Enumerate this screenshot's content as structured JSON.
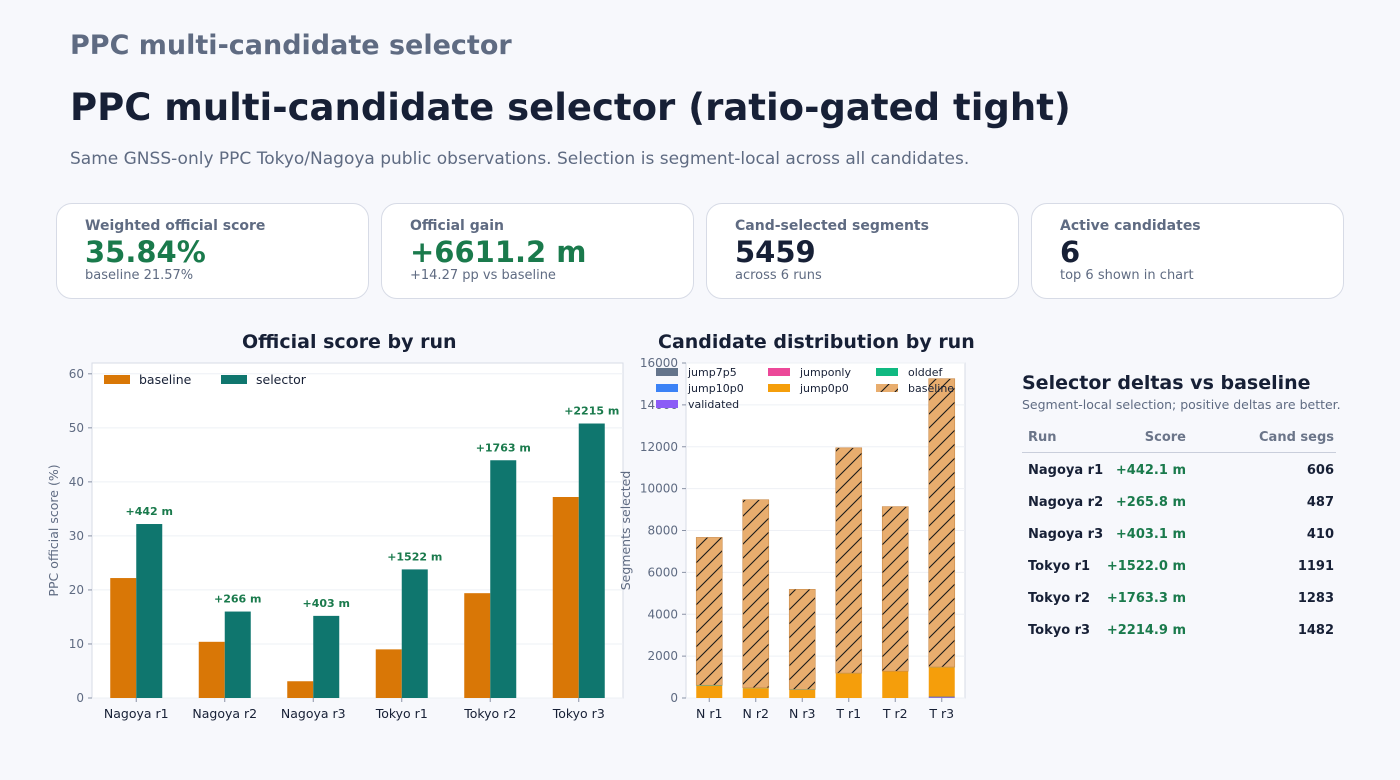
{
  "header": {
    "kicker": "PPC multi-candidate selector",
    "title": "PPC multi-candidate selector (ratio-gated tight)",
    "subtitle": "Same GNSS-only PPC Tokyo/Nagoya public observations. Selection is segment-local across all candidates."
  },
  "cards": [
    {
      "label": "Weighted official score",
      "value": "35.84%",
      "sub": "baseline 21.57%"
    },
    {
      "label": "Official gain",
      "value": "+6611.2 m",
      "sub": "+14.27 pp vs baseline"
    },
    {
      "label": "Cand-selected segments",
      "value": "5459",
      "sub": "across 6 runs"
    },
    {
      "label": "Active candidates",
      "value": "6",
      "sub": "top 6 shown in chart"
    }
  ],
  "colors": {
    "baseline_bar": "#d97706",
    "selector_bar": "#0f766e",
    "gain_text": "#1a7a4c",
    "jump7p5": "#64748b",
    "jumponly": "#ec4899",
    "olddef": "#10b981",
    "jump10p0": "#3b82f6",
    "jump0p0": "#f59e0b",
    "baseline_stack": "#e8ad6e",
    "validated": "#8b5cf6"
  },
  "chart_data": [
    {
      "type": "bar",
      "title": "Official score by run",
      "ylabel": "PPC official score (%)",
      "xlabel": "",
      "categories": [
        "Nagoya r1",
        "Nagoya r2",
        "Nagoya r3",
        "Tokyo r1",
        "Tokyo r2",
        "Tokyo r3"
      ],
      "ylim": [
        0,
        62
      ],
      "yticks": [
        0,
        10,
        20,
        30,
        40,
        50,
        60
      ],
      "series": [
        {
          "name": "baseline",
          "values": [
            22.2,
            10.4,
            3.1,
            9.0,
            19.4,
            37.2
          ]
        },
        {
          "name": "selector",
          "values": [
            32.2,
            16.0,
            15.2,
            23.8,
            44.0,
            50.8
          ]
        }
      ],
      "annotations": [
        "+442 m",
        "+266 m",
        "+403 m",
        "+1522 m",
        "+1763 m",
        "+2215 m"
      ],
      "legend": "top-left",
      "grid": true
    },
    {
      "type": "bar",
      "stacked": true,
      "title": "Candidate distribution by run",
      "ylabel": "Segments selected",
      "xlabel": "",
      "categories": [
        "N r1",
        "N r2",
        "N r3",
        "T r1",
        "T r2",
        "T r3"
      ],
      "ylim": [
        0,
        16000
      ],
      "yticks": [
        0,
        2000,
        4000,
        6000,
        8000,
        10000,
        12000,
        14000,
        16000
      ],
      "series": [
        {
          "name": "validated",
          "values": [
            0,
            0,
            0,
            0,
            0,
            30
          ]
        },
        {
          "name": "jump7p5",
          "values": [
            0,
            0,
            0,
            0,
            0,
            40
          ]
        },
        {
          "name": "jump10p0",
          "values": [
            0,
            0,
            0,
            0,
            0,
            0
          ]
        },
        {
          "name": "jumponly",
          "values": [
            0,
            0,
            0,
            0,
            0,
            0
          ]
        },
        {
          "name": "jump0p0",
          "values": [
            580,
            470,
            390,
            1180,
            1270,
            1400
          ]
        },
        {
          "name": "olddef",
          "values": [
            30,
            20,
            20,
            10,
            10,
            10
          ]
        },
        {
          "name": "baseline",
          "values": [
            7060,
            8980,
            4780,
            10760,
            7860,
            13770
          ]
        }
      ],
      "legend_order": [
        "jump7p5",
        "jumponly",
        "olddef",
        "jump10p0",
        "jump0p0",
        "baseline",
        "validated"
      ],
      "legend": "top",
      "grid": true
    }
  ],
  "deltas": {
    "title": "Selector deltas vs baseline",
    "subtitle": "Segment-local selection; positive deltas are better.",
    "columns": [
      "Run",
      "Score",
      "Cand segs"
    ],
    "rows": [
      {
        "run": "Nagoya r1",
        "score": "+442.1 m",
        "segs": "606"
      },
      {
        "run": "Nagoya r2",
        "score": "+265.8 m",
        "segs": "487"
      },
      {
        "run": "Nagoya r3",
        "score": "+403.1 m",
        "segs": "410"
      },
      {
        "run": "Tokyo r1",
        "score": "+1522.0 m",
        "segs": "1191"
      },
      {
        "run": "Tokyo r2",
        "score": "+1763.3 m",
        "segs": "1283"
      },
      {
        "run": "Tokyo r3",
        "score": "+2214.9 m",
        "segs": "1482"
      }
    ]
  }
}
